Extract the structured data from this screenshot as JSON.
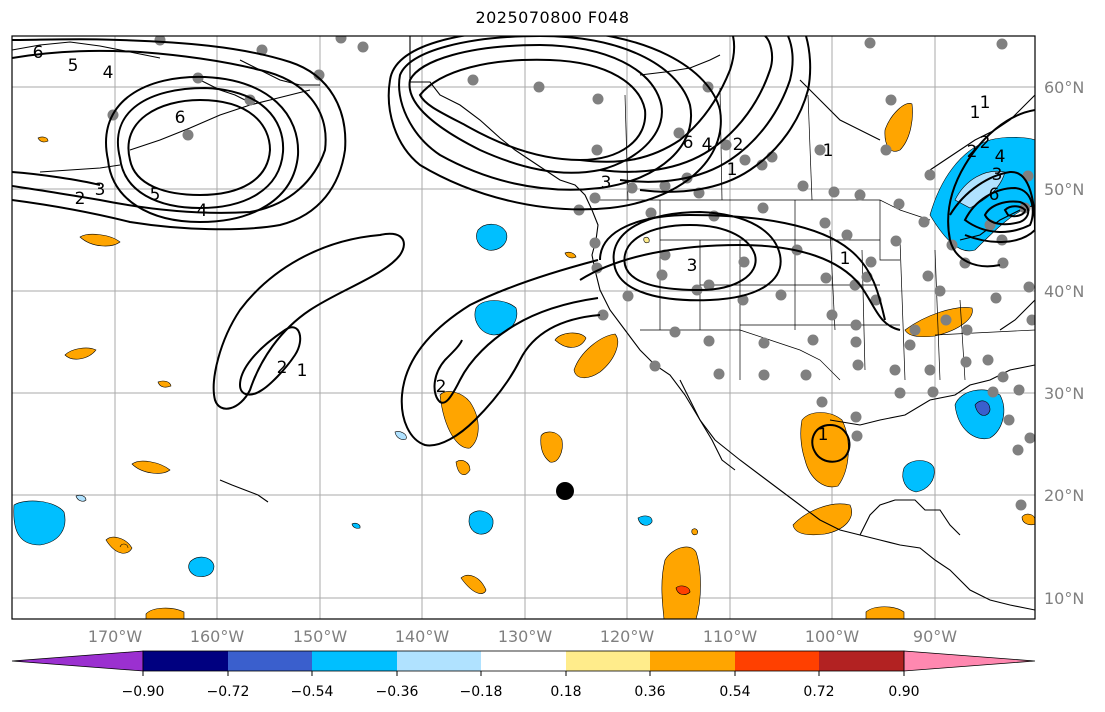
{
  "title": "2025070800 F048",
  "lon_labels": [
    "170°W",
    "160°W",
    "150°W",
    "140°W",
    "130°W",
    "120°W",
    "110°W",
    "100°W",
    "90°W"
  ],
  "lat_labels": [
    "60°N",
    "50°N",
    "40°N",
    "30°N",
    "20°N",
    "10°N"
  ],
  "colorbar": {
    "ticks": [
      "−0.90",
      "−0.72",
      "−0.54",
      "−0.36",
      "−0.18",
      "0.18",
      "0.36",
      "0.54",
      "0.72",
      "0.90"
    ],
    "colors": [
      "#9b30d0",
      "#000080",
      "#3a5fcd",
      "#00bfff",
      "#b0e2ff",
      "#ffffff",
      "#ffec8b",
      "#ffa500",
      "#ff4000",
      "#b22222",
      "#ff88b0"
    ]
  },
  "contour_labels": [
    "6",
    "5",
    "4",
    "6",
    "3",
    "2",
    "5",
    "4",
    "4",
    "3",
    "6",
    "2",
    "1",
    "3",
    "2",
    "1",
    "2",
    "1",
    "2",
    "1",
    "2",
    "4",
    "6",
    "1",
    "3",
    "1",
    "1"
  ],
  "colors": {
    "gridline": "#aaaaaa",
    "contour": "#000000",
    "station": "#808080",
    "coast": "#000000"
  }
}
